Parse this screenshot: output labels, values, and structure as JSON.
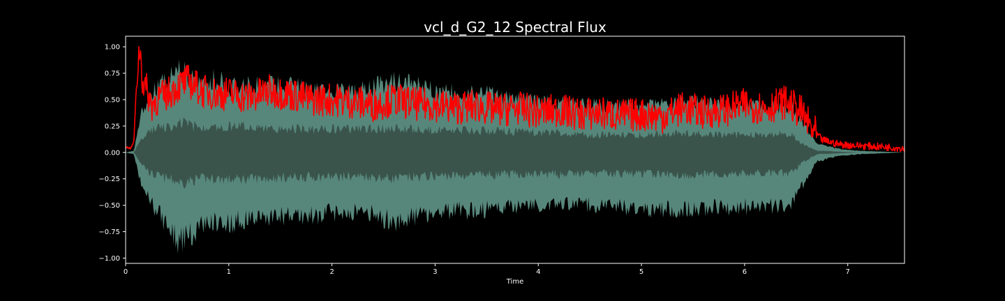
{
  "chart_data": {
    "type": "line",
    "title": "vcl_d_G2_12 Spectral Flux",
    "xlabel": "Time",
    "ylabel": "",
    "xlim": [
      0,
      7.55
    ],
    "ylim": [
      -1.05,
      1.1
    ],
    "x_ticks": [
      0,
      1,
      2,
      3,
      4,
      5,
      6,
      7
    ],
    "x_tick_labels": [
      "0",
      "1",
      "2",
      "3",
      "4",
      "5",
      "6",
      "7"
    ],
    "y_ticks": [
      1.0,
      0.75,
      0.5,
      0.25,
      0.0,
      -0.25,
      -0.5,
      -0.75,
      -1.0
    ],
    "y_tick_labels": [
      "1.00",
      "0.75",
      "0.50",
      "0.25",
      "0.00",
      "−0.25",
      "−0.50",
      "−0.75",
      "−1.00"
    ],
    "grid": false,
    "background": "#000000",
    "colors": {
      "waveform_outer": "#57877a",
      "waveform_inner": "#3a544c",
      "flux": "#ff0000",
      "axes": "#ffffff"
    },
    "series": [
      {
        "kind": "waveform-envelope",
        "x": [
          0,
          0.08,
          0.15,
          0.25,
          0.4,
          0.5,
          0.55,
          0.65,
          0.75,
          0.9,
          1.0,
          1.2,
          1.5,
          1.8,
          2.0,
          2.3,
          2.6,
          3.0,
          3.4,
          3.8,
          4.2,
          4.6,
          5.0,
          5.4,
          5.8,
          6.2,
          6.45,
          6.55,
          6.7,
          6.9,
          7.1,
          7.3,
          7.55
        ],
        "upper": [
          0,
          0.02,
          0.45,
          0.65,
          0.8,
          0.95,
          0.9,
          0.82,
          0.78,
          0.8,
          0.72,
          0.73,
          0.75,
          0.68,
          0.66,
          0.68,
          0.78,
          0.68,
          0.66,
          0.58,
          0.55,
          0.52,
          0.52,
          0.55,
          0.53,
          0.5,
          0.5,
          0.35,
          0.1,
          0.04,
          0.02,
          0.01,
          0.0
        ],
        "lower": [
          0,
          -0.02,
          -0.35,
          -0.55,
          -0.8,
          -0.97,
          -0.95,
          -0.9,
          -0.78,
          -0.75,
          -0.78,
          -0.72,
          -0.7,
          -0.7,
          -0.66,
          -0.65,
          -0.76,
          -0.65,
          -0.64,
          -0.58,
          -0.58,
          -0.58,
          -0.62,
          -0.63,
          -0.6,
          -0.6,
          -0.6,
          -0.38,
          -0.1,
          -0.04,
          -0.02,
          -0.01,
          0.0
        ],
        "inner_upper": [
          0,
          0.0,
          0.15,
          0.25,
          0.3,
          0.32,
          0.34,
          0.3,
          0.3,
          0.28,
          0.3,
          0.29,
          0.28,
          0.27,
          0.27,
          0.26,
          0.28,
          0.25,
          0.25,
          0.24,
          0.22,
          0.2,
          0.2,
          0.22,
          0.2,
          0.2,
          0.22,
          0.1,
          0.02,
          0.01,
          0.0,
          0.0,
          0.0
        ],
        "inner_lower": [
          0,
          0.0,
          -0.12,
          -0.25,
          -0.3,
          -0.33,
          -0.35,
          -0.32,
          -0.3,
          -0.3,
          -0.31,
          -0.3,
          -0.29,
          -0.28,
          -0.28,
          -0.27,
          -0.3,
          -0.27,
          -0.26,
          -0.25,
          -0.25,
          -0.24,
          -0.24,
          -0.26,
          -0.25,
          -0.24,
          -0.24,
          -0.12,
          -0.02,
          -0.01,
          0.0,
          0.0,
          0.0
        ]
      },
      {
        "kind": "spectral-flux",
        "x": [
          0,
          0.05,
          0.08,
          0.1,
          0.12,
          0.14,
          0.16,
          0.2,
          0.25,
          0.3,
          0.4,
          0.5,
          0.6,
          0.75,
          0.9,
          1.0,
          1.2,
          1.4,
          1.6,
          1.8,
          2.0,
          2.2,
          2.4,
          2.6,
          2.8,
          3.0,
          3.2,
          3.4,
          3.6,
          3.8,
          4.0,
          4.2,
          4.4,
          4.6,
          4.8,
          5.0,
          5.2,
          5.4,
          5.6,
          5.8,
          6.0,
          6.2,
          6.4,
          6.55,
          6.65,
          6.75,
          6.9,
          7.0,
          7.2,
          7.4,
          7.55
        ],
        "y": [
          0.05,
          0.04,
          0.1,
          0.55,
          0.85,
          1.0,
          0.7,
          0.6,
          0.45,
          0.5,
          0.55,
          0.62,
          0.68,
          0.58,
          0.55,
          0.56,
          0.52,
          0.58,
          0.55,
          0.5,
          0.5,
          0.48,
          0.45,
          0.5,
          0.46,
          0.45,
          0.42,
          0.44,
          0.4,
          0.42,
          0.38,
          0.4,
          0.36,
          0.37,
          0.35,
          0.36,
          0.34,
          0.42,
          0.38,
          0.4,
          0.45,
          0.42,
          0.48,
          0.38,
          0.22,
          0.12,
          0.08,
          0.07,
          0.06,
          0.05,
          0.04
        ]
      }
    ]
  }
}
